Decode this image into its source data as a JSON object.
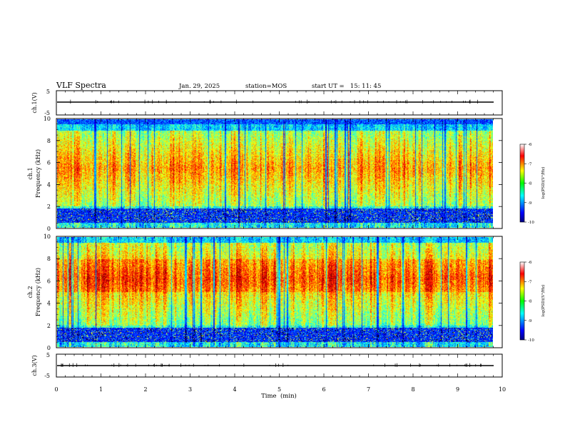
{
  "header": {
    "title": "VLF Spectra",
    "date": "Jan. 29, 2025",
    "station": "station=MOS",
    "start": "start UT =   15: 11: 45"
  },
  "chart_data": [
    {
      "type": "line",
      "name": "ch1-waveform",
      "ylabel": "ch.1(V)",
      "ylim": [
        -5,
        5
      ],
      "yticks": [
        "5",
        "-5"
      ],
      "xlim": [
        0,
        10
      ],
      "level": 0
    },
    {
      "type": "heatmap",
      "name": "ch1-spectrogram",
      "ylabel_line1": "ch.1",
      "ylabel_line2": "Frequency (kHz)",
      "ylim": [
        0,
        10
      ],
      "yticks": [
        "0",
        "2",
        "4",
        "6",
        "8",
        "10"
      ],
      "xlim": [
        0,
        9.8
      ],
      "emission_band_khz": [
        2,
        9
      ],
      "quiet_band_khz": [
        0.5,
        1.8
      ],
      "colorbar": {
        "label": "log(PSD)(V²/Hz)",
        "range": [
          -10,
          -6
        ],
        "ticks": [
          "-6",
          "-7",
          "-8",
          "-9",
          "-10"
        ]
      }
    },
    {
      "type": "heatmap",
      "name": "ch2-spectrogram",
      "ylabel_line1": "ch.2",
      "ylabel_line2": "Frequency (kHz)",
      "ylim": [
        0,
        10
      ],
      "yticks": [
        "0",
        "2",
        "4",
        "6",
        "8",
        "10"
      ],
      "xlim": [
        0,
        9.8
      ],
      "emission_band_khz": [
        2,
        9.5
      ],
      "quiet_band_khz": [
        0.5,
        1.8
      ],
      "colorbar": {
        "label": "log(PSD)(V²/Hz)",
        "range": [
          -10,
          -6
        ],
        "ticks": [
          "-6",
          "-7",
          "-8",
          "-9",
          "-10"
        ]
      }
    },
    {
      "type": "line",
      "name": "ch3-waveform",
      "ylabel": "ch.3(V)",
      "ylim": [
        -5,
        5
      ],
      "yticks": [
        "5",
        "-5"
      ],
      "xlim": [
        0,
        10
      ],
      "level": 0
    }
  ],
  "xaxis": {
    "label": "Time  (min)",
    "ticks": [
      "0",
      "1",
      "2",
      "3",
      "4",
      "5",
      "6",
      "7",
      "8",
      "9",
      "10"
    ],
    "range": [
      0,
      10
    ]
  }
}
